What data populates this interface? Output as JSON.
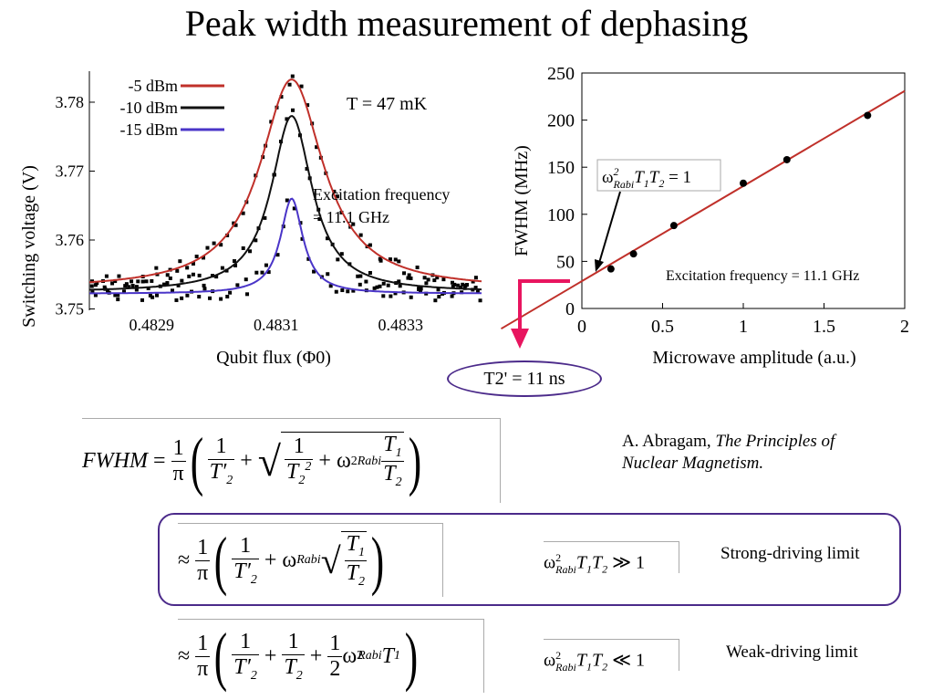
{
  "title": "Peak width measurement of dephasing",
  "chart_data": [
    {
      "type": "line",
      "xlabel": "Qubit flux (Φ0)",
      "ylabel": "Switching voltage (V)",
      "xlim": [
        0.4828,
        0.48343
      ],
      "ylim": [
        3.7498,
        3.7845
      ],
      "x_ticks": [
        "0.4829",
        "0.4831",
        "0.4833"
      ],
      "x_tick_values": [
        0.4829,
        0.4831,
        0.4833
      ],
      "y_ticks": [
        "3.75",
        "3.76",
        "3.77",
        "3.78"
      ],
      "y_tick_values": [
        3.75,
        3.76,
        3.77,
        3.78
      ],
      "legend_position": "top-left",
      "annotations": [
        "T = 47 mK",
        "Excitation frequency",
        "= 11.1 GHz"
      ],
      "series": [
        {
          "name": "-5 dBm",
          "color": "#c0302a",
          "baseline": 3.7528,
          "peak": 3.7833,
          "center": 0.483125,
          "hwhm": 6.2e-05
        },
        {
          "name": "-10 dBm",
          "color": "#111111",
          "baseline": 3.7524,
          "peak": 3.778,
          "center": 0.483125,
          "hwhm": 4e-05
        },
        {
          "name": "-15 dBm",
          "color": "#4a35c8",
          "baseline": 3.7522,
          "peak": 3.766,
          "center": 0.483125,
          "hwhm": 2.2e-05
        }
      ]
    },
    {
      "type": "scatter",
      "xlabel": "Microwave amplitude (a.u.)",
      "ylabel": "FWHM (MHz)",
      "xlim": [
        0,
        2
      ],
      "ylim": [
        0,
        250
      ],
      "x_ticks": [
        "0",
        "0.5",
        "1",
        "1.5",
        "2"
      ],
      "x_tick_values": [
        0,
        0.5,
        1,
        1.5,
        2
      ],
      "y_ticks": [
        "0",
        "50",
        "100",
        "150",
        "200",
        "250"
      ],
      "y_tick_values": [
        0,
        50,
        100,
        150,
        200,
        250
      ],
      "points": [
        {
          "x": 0.18,
          "y": 42
        },
        {
          "x": 0.32,
          "y": 58
        },
        {
          "x": 0.57,
          "y": 88
        },
        {
          "x": 1.0,
          "y": 133
        },
        {
          "x": 1.27,
          "y": 158
        },
        {
          "x": 1.77,
          "y": 205
        }
      ],
      "fit": {
        "intercept": 29,
        "slope": 101,
        "color": "#c0302a"
      },
      "annotation": "Excitation frequency = 11.1 GHz",
      "arrow_label": "ω²RabiT1T2 = 1"
    }
  ],
  "t2_result": "T2' = 11 ns",
  "citation": {
    "author": "A. Abragam, ",
    "book_line1": "The  Principles of",
    "book_line2": "Nuclear Magnetism."
  },
  "limits": {
    "strong": "Strong-driving limit",
    "weak": "Weak-driving limit"
  },
  "colors": {
    "purple": "#4b2a8a",
    "pink": "#e8155f"
  }
}
